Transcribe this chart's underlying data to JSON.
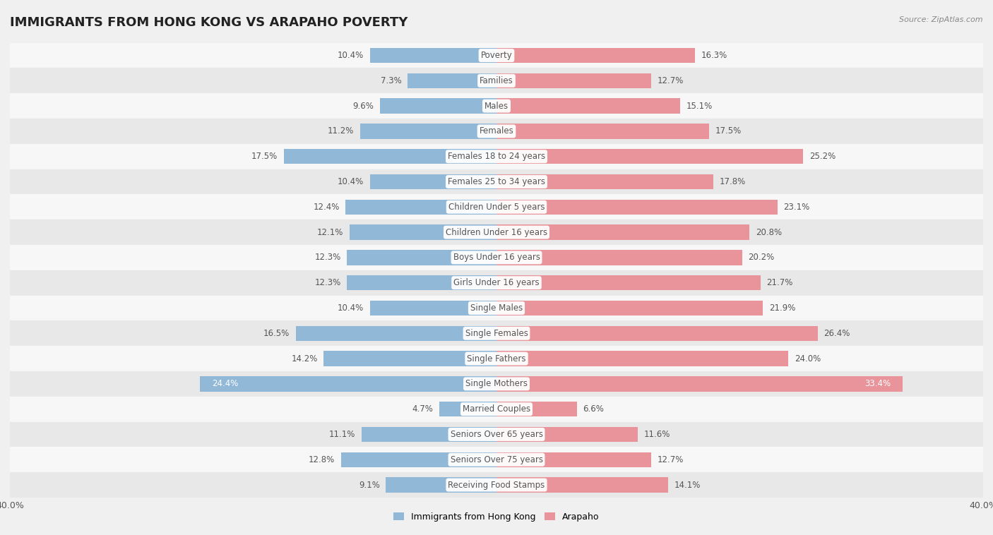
{
  "title": "IMMIGRANTS FROM HONG KONG VS ARAPAHO POVERTY",
  "source": "Source: ZipAtlas.com",
  "categories": [
    "Poverty",
    "Families",
    "Males",
    "Females",
    "Females 18 to 24 years",
    "Females 25 to 34 years",
    "Children Under 5 years",
    "Children Under 16 years",
    "Boys Under 16 years",
    "Girls Under 16 years",
    "Single Males",
    "Single Females",
    "Single Fathers",
    "Single Mothers",
    "Married Couples",
    "Seniors Over 65 years",
    "Seniors Over 75 years",
    "Receiving Food Stamps"
  ],
  "left_values": [
    10.4,
    7.3,
    9.6,
    11.2,
    17.5,
    10.4,
    12.4,
    12.1,
    12.3,
    12.3,
    10.4,
    16.5,
    14.2,
    24.4,
    4.7,
    11.1,
    12.8,
    9.1
  ],
  "right_values": [
    16.3,
    12.7,
    15.1,
    17.5,
    25.2,
    17.8,
    23.1,
    20.8,
    20.2,
    21.7,
    21.9,
    26.4,
    24.0,
    33.4,
    6.6,
    11.6,
    12.7,
    14.1
  ],
  "left_color": "#92b8d8",
  "right_color": "#e8949a",
  "bg_color": "#f0f0f0",
  "row_bg_light": "#f7f7f7",
  "row_bg_dark": "#e8e8e8",
  "axis_max": 40.0,
  "legend_left": "Immigrants from Hong Kong",
  "legend_right": "Arapaho",
  "bar_height": 0.6,
  "title_fontsize": 13,
  "label_fontsize": 8.5,
  "value_fontsize": 8.5
}
